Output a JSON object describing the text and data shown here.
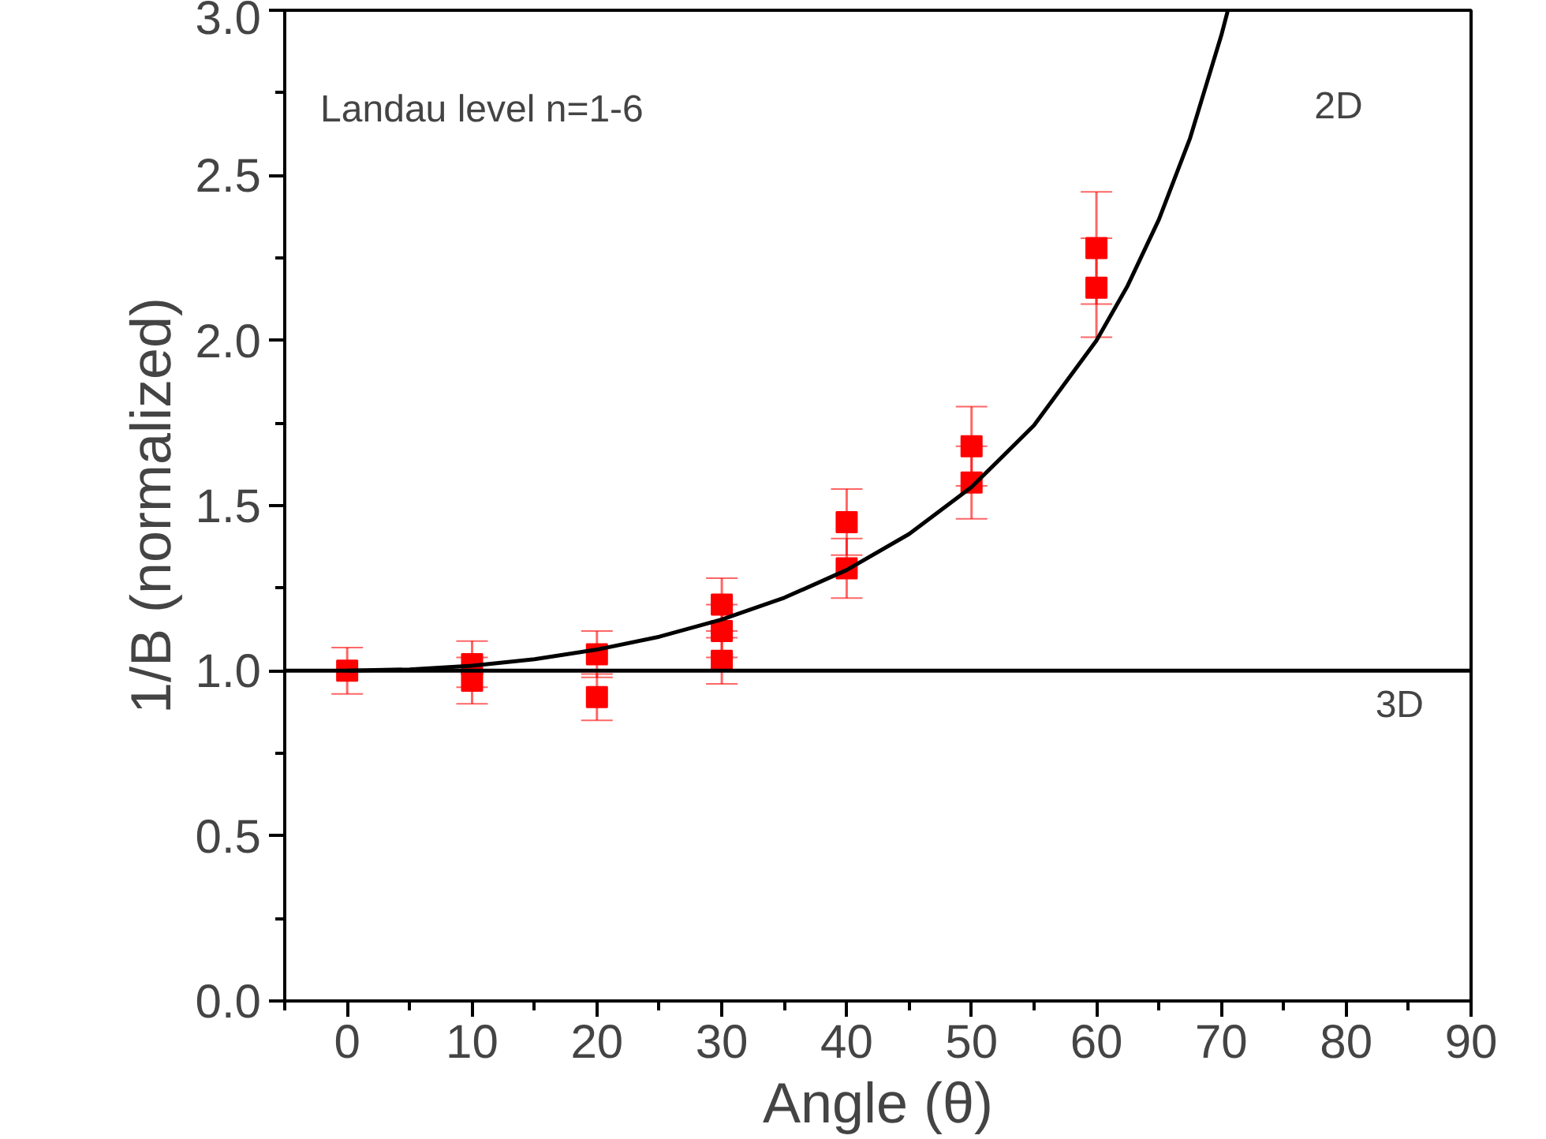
{
  "chart_data": {
    "type": "scatter",
    "xlabel": "Angle (θ)",
    "ylabel": "1/B (normalized)",
    "xlim": [
      -5,
      90
    ],
    "ylim": [
      0,
      3
    ],
    "xticks": [
      0,
      10,
      20,
      30,
      40,
      50,
      60,
      70,
      80,
      90
    ],
    "yticks": [
      {
        "value": 0,
        "label": "0.0"
      },
      {
        "value": 0.5,
        "label": "0.5"
      },
      {
        "value": 1,
        "label": "1.0"
      },
      {
        "value": 1.5,
        "label": "1.5"
      },
      {
        "value": 2,
        "label": "2.0"
      },
      {
        "value": 2.5,
        "label": "2.5"
      },
      {
        "value": 3,
        "label": "3.0"
      }
    ],
    "grid": false,
    "series": [
      {
        "color": "#ff0000",
        "marker": "square",
        "x": [
          0,
          10,
          10,
          20,
          20,
          30,
          30,
          30,
          40,
          40,
          50,
          50,
          60,
          60
        ],
        "values": [
          1.0,
          0.97,
          1.02,
          0.92,
          1.05,
          1.03,
          1.12,
          1.2,
          1.31,
          1.45,
          1.57,
          1.68,
          2.16,
          2.28
        ],
        "errors": [
          0.07,
          0.07,
          0.07,
          0.07,
          0.07,
          0.07,
          0.08,
          0.08,
          0.09,
          0.1,
          0.11,
          0.12,
          0.15,
          0.17
        ]
      },
      {
        "type": "line",
        "name": "2D",
        "color": "#000000",
        "line_style": "solid",
        "x": [
          0,
          5,
          10,
          15,
          20,
          25,
          30,
          35,
          40,
          45,
          50,
          55,
          60,
          62.5,
          65,
          67.5,
          70,
          70.5
        ],
        "values": [
          1,
          1.004,
          1.015,
          1.035,
          1.064,
          1.103,
          1.155,
          1.221,
          1.305,
          1.414,
          1.556,
          1.743,
          2.0,
          2.166,
          2.366,
          2.613,
          2.924,
          2.996
        ]
      },
      {
        "type": "line",
        "name": "3D",
        "color": "#000000",
        "line_style": "solid",
        "x": [
          -5,
          90
        ],
        "values": [
          1,
          1
        ]
      }
    ],
    "annotations": [
      "Landau level n=1-6"
    ]
  }
}
